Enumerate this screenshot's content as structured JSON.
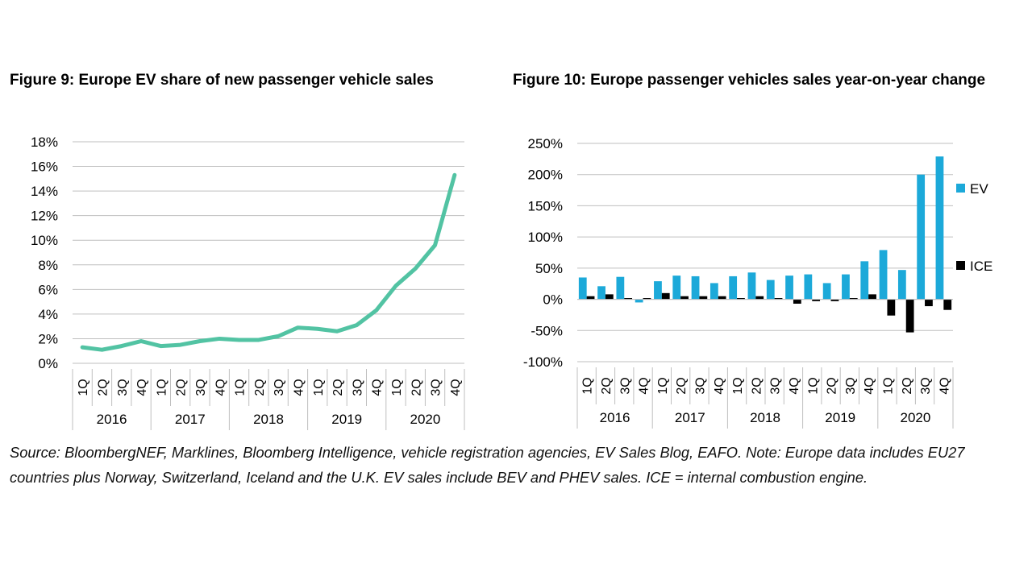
{
  "figure9": {
    "title": "Figure 9: Europe EV share of new passenger vehicle sales"
  },
  "figure10": {
    "title": "Figure 10: Europe passenger vehicles sales year-on-year change"
  },
  "source_note": "Source: BloombergNEF, Marklines, Bloomberg Intelligence, vehicle registration agencies, EV Sales Blog, EAFO. Note: Europe data includes EU27 countries plus Norway, Switzerland, Iceland and the U.K. EV sales include BEV and PHEV sales. ICE = internal combustion engine.",
  "colors": {
    "ev": "#1CA9D9",
    "ice": "#000000",
    "line": "#52C3A3",
    "grid": "#BFBFBF"
  },
  "chart_data": [
    {
      "id": "fig9",
      "type": "line",
      "title": "Figure 9: Europe EV share of new passenger vehicle sales",
      "quarters": [
        "1Q",
        "2Q",
        "3Q",
        "4Q"
      ],
      "years": [
        "2016",
        "2017",
        "2018",
        "2019",
        "2020"
      ],
      "yticks": [
        "0%",
        "2%",
        "4%",
        "6%",
        "8%",
        "10%",
        "12%",
        "14%",
        "16%",
        "18%"
      ],
      "ylim": [
        0,
        18
      ],
      "series": [
        {
          "name": "EV share",
          "values": [
            1.3,
            1.1,
            1.4,
            1.8,
            1.4,
            1.5,
            1.8,
            2.0,
            1.9,
            1.9,
            2.2,
            2.9,
            2.8,
            2.6,
            3.1,
            4.3,
            6.3,
            7.7,
            9.6,
            15.3
          ]
        }
      ]
    },
    {
      "id": "fig10",
      "type": "bar",
      "title": "Figure 10: Europe passenger vehicles sales year-on-year change",
      "quarters": [
        "1Q",
        "2Q",
        "3Q",
        "4Q"
      ],
      "years": [
        "2016",
        "2017",
        "2018",
        "2019",
        "2020"
      ],
      "yticks": [
        "-100%",
        "-50%",
        "0%",
        "50%",
        "100%",
        "150%",
        "200%",
        "250%"
      ],
      "ylim": [
        -100,
        250
      ],
      "legend": [
        "EV",
        "ICE"
      ],
      "series": [
        {
          "name": "EV",
          "values": [
            35,
            21,
            36,
            -5,
            29,
            38,
            37,
            26,
            37,
            43,
            31,
            38,
            40,
            26,
            40,
            61,
            79,
            47,
            200,
            229
          ]
        },
        {
          "name": "ICE",
          "values": [
            5,
            8,
            2,
            2,
            10,
            5,
            5,
            5,
            2,
            5,
            2,
            -7,
            -3,
            -3,
            2,
            8,
            -26,
            -53,
            -11,
            -17
          ]
        }
      ]
    }
  ]
}
